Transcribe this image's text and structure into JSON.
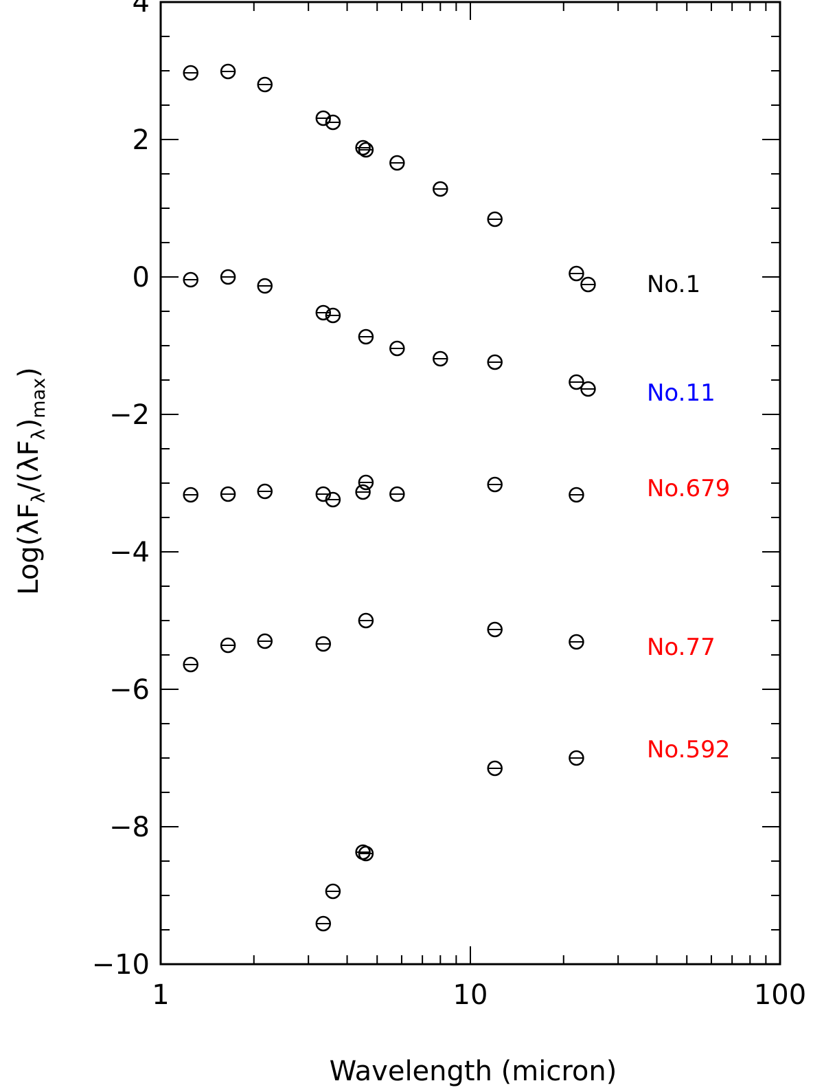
{
  "chart_data": {
    "type": "scatter",
    "title": "",
    "xlabel": "Wavelength (micron)",
    "ylabel_parts": [
      "Log(λF",
      "λ",
      "/(λF",
      "λ",
      ")",
      "max",
      ")"
    ],
    "x_scale": "log",
    "xlim": [
      1,
      100
    ],
    "ylim": [
      -10,
      4
    ],
    "x_ticks": [
      1,
      10,
      100
    ],
    "x_tick_labels": [
      "1",
      "10",
      "100"
    ],
    "y_ticks": [
      -10,
      -8,
      -6,
      -4,
      -2,
      0,
      2,
      4
    ],
    "y_tick_labels": [
      "−10",
      "−8",
      "−6",
      "−4",
      "−2",
      "0",
      "2",
      "4"
    ],
    "marker": "circle-with-errorbar",
    "grid": false,
    "series": [
      {
        "name": "No.1",
        "color": "#000000",
        "label_y": -0.1,
        "points": [
          [
            1.25,
            2.97
          ],
          [
            1.65,
            2.99
          ],
          [
            2.17,
            2.8
          ],
          [
            3.35,
            2.31
          ],
          [
            3.6,
            2.25
          ],
          [
            4.5,
            1.88
          ],
          [
            4.6,
            1.85
          ],
          [
            5.8,
            1.66
          ],
          [
            8.0,
            1.28
          ],
          [
            12,
            0.84
          ],
          [
            22,
            0.05
          ],
          [
            24,
            -0.11
          ]
        ]
      },
      {
        "name": "No.11",
        "color": "#0000ff",
        "label_y": -1.68,
        "points": [
          [
            1.25,
            -0.04
          ],
          [
            1.65,
            0.0
          ],
          [
            2.17,
            -0.13
          ],
          [
            3.35,
            -0.52
          ],
          [
            3.6,
            -0.56
          ],
          [
            4.6,
            -0.87
          ],
          [
            5.8,
            -1.04
          ],
          [
            8.0,
            -1.19
          ],
          [
            12,
            -1.24
          ],
          [
            22,
            -1.53
          ],
          [
            24,
            -1.63
          ]
        ]
      },
      {
        "name": "No.679",
        "color": "#ff0000",
        "label_y": -3.07,
        "points": [
          [
            1.25,
            -3.17
          ],
          [
            1.65,
            -3.16
          ],
          [
            2.17,
            -3.12
          ],
          [
            3.35,
            -3.16
          ],
          [
            3.6,
            -3.24
          ],
          [
            4.5,
            -3.13
          ],
          [
            4.6,
            -2.99
          ],
          [
            5.8,
            -3.16
          ],
          [
            12,
            -3.02
          ],
          [
            22,
            -3.17
          ]
        ]
      },
      {
        "name": "No.77",
        "color": "#ff0000",
        "label_y": -5.38,
        "points": [
          [
            1.25,
            -5.64
          ],
          [
            1.65,
            -5.36
          ],
          [
            2.17,
            -5.3
          ],
          [
            3.35,
            -5.34
          ],
          [
            4.6,
            -5.0
          ],
          [
            12,
            -5.13
          ],
          [
            22,
            -5.31
          ]
        ]
      },
      {
        "name": "No.592",
        "color": "#ff0000",
        "label_y": -6.87,
        "points": [
          [
            3.35,
            -9.41
          ],
          [
            3.6,
            -8.94
          ],
          [
            4.5,
            -8.37
          ],
          [
            4.6,
            -8.39
          ],
          [
            12,
            -7.15
          ],
          [
            22,
            -7.0
          ]
        ]
      }
    ]
  }
}
